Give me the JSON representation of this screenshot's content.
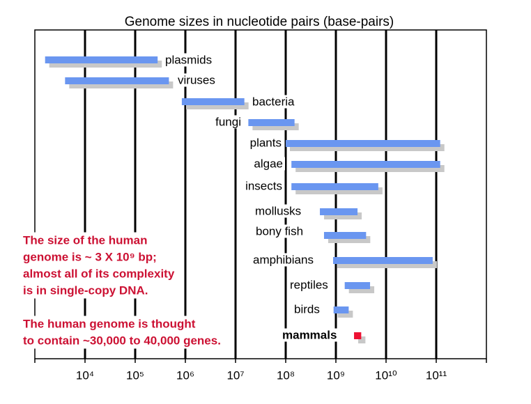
{
  "chart_data": {
    "type": "rangebar",
    "title": "Genome sizes in nucleotide pairs (base-pairs)",
    "categories": [
      "plasmids",
      "viruses",
      "bacteria",
      "fungi",
      "plants",
      "algae",
      "insects",
      "mollusks",
      "bony fish",
      "amphibians",
      "reptiles",
      "birds",
      "mammals"
    ],
    "low": [
      1600,
      4000,
      850000,
      18000000,
      100000000,
      130000000,
      130000000,
      480000000,
      580000000,
      880000000,
      1500000000,
      900000000,
      2300000000
    ],
    "high": [
      280000,
      470000,
      15000000,
      150000000,
      120000000000,
      120000000000,
      7000000000,
      2700000000,
      4000000000,
      85000000000,
      4800000000,
      1800000000,
      3200000000
    ],
    "colors": [
      "#6a96f0",
      "#6a96f0",
      "#6a96f0",
      "#6a96f0",
      "#6a96f0",
      "#6a96f0",
      "#6a96f0",
      "#6a96f0",
      "#6a96f0",
      "#6a96f0",
      "#6a96f0",
      "#6a96f0",
      "#ee1133"
    ],
    "shadow_color": "#c8c8c8",
    "bold_categories": [
      12
    ],
    "log_x": true,
    "grid": true,
    "xlim": [
      1000,
      1000000000000
    ],
    "xticks": [
      {
        "value": 10000,
        "label": "10⁴"
      },
      {
        "value": 100000,
        "label": "10⁵"
      },
      {
        "value": 1000000,
        "label": "10⁶"
      },
      {
        "value": 10000000,
        "label": "10⁷"
      },
      {
        "value": 100000000,
        "label": "10⁸"
      },
      {
        "value": 1000000000,
        "label": "10⁹"
      },
      {
        "value": 10000000000,
        "label": "10¹⁰"
      },
      {
        "value": 100000000000,
        "label": "10¹¹"
      }
    ],
    "annotations": [
      [
        "The size of the human",
        "genome is ~ 3 X 10⁹ bp;",
        "almost all of its complexity",
        "is in single-copy DNA."
      ],
      [
        "The human genome is thought",
        "to contain ~30,000 to 40,000 genes."
      ]
    ]
  }
}
